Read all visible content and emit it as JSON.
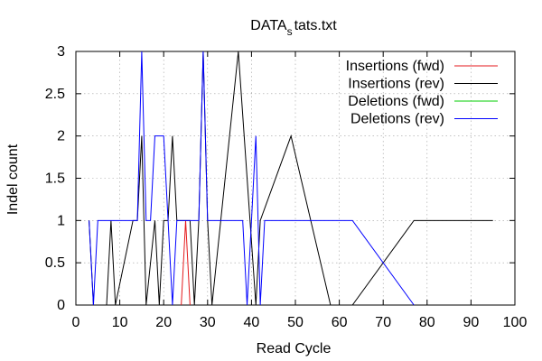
{
  "chart_data": {
    "type": "line",
    "title_main": "DATA",
    "title_sub": "s",
    "title_rest": "tats.txt",
    "xlabel": "Read Cycle",
    "ylabel": "Indel count",
    "xlim": [
      0,
      100
    ],
    "ylim": [
      0,
      3
    ],
    "x_ticks": [
      0,
      10,
      20,
      30,
      40,
      50,
      60,
      70,
      80,
      90,
      100
    ],
    "y_ticks": [
      0,
      0.5,
      1,
      1.5,
      2,
      2.5,
      3
    ],
    "x_tick_labels": [
      "0",
      "10",
      "20",
      "30",
      "40",
      "50",
      "60",
      "70",
      "80",
      "90",
      "100"
    ],
    "y_tick_labels": [
      "0",
      "0.5",
      "1",
      "1.5",
      "2",
      "2.5",
      "3"
    ],
    "grid": true,
    "legend_position": "top-right",
    "series": [
      {
        "name": "Insertions (fwd)",
        "color": "#e41a1c",
        "points": [
          [
            24,
            0
          ],
          [
            25,
            1
          ],
          [
            26,
            0
          ]
        ]
      },
      {
        "name": "Insertions (rev)",
        "color": "#000000",
        "points": [
          [
            3,
            1
          ],
          [
            4,
            0
          ],
          [
            5,
            0
          ],
          [
            7,
            0
          ],
          [
            8,
            1
          ],
          [
            9,
            0
          ],
          [
            13,
            1
          ],
          [
            14,
            1
          ],
          [
            15,
            2
          ],
          [
            16,
            0
          ],
          [
            18,
            1
          ],
          [
            19,
            0
          ],
          [
            20,
            1
          ],
          [
            21,
            1
          ],
          [
            22,
            2
          ],
          [
            23,
            1
          ],
          [
            26,
            1
          ],
          [
            27,
            0
          ],
          [
            28,
            1
          ],
          [
            29,
            3
          ],
          [
            30,
            1
          ],
          [
            31,
            0
          ],
          [
            37,
            3
          ],
          [
            41,
            0
          ],
          [
            42,
            1
          ],
          [
            49,
            2
          ],
          [
            58,
            0
          ],
          [
            63,
            0
          ],
          [
            77,
            1
          ],
          [
            95,
            1
          ]
        ]
      },
      {
        "name": "Deletions (fwd)",
        "color": "#00cc00",
        "points": []
      },
      {
        "name": "Deletions (rev)",
        "color": "#0000ff",
        "points": [
          [
            3,
            1
          ],
          [
            4,
            0
          ],
          [
            5,
            1
          ],
          [
            14,
            1
          ],
          [
            15,
            3
          ],
          [
            16,
            1
          ],
          [
            17,
            1
          ],
          [
            18,
            2
          ],
          [
            20,
            2
          ],
          [
            21,
            1
          ],
          [
            22,
            0
          ],
          [
            23,
            1
          ],
          [
            28,
            1
          ],
          [
            29,
            3
          ],
          [
            30,
            1
          ],
          [
            38,
            1
          ],
          [
            39,
            0
          ],
          [
            40,
            1
          ],
          [
            41,
            2
          ],
          [
            42,
            0
          ],
          [
            43,
            1
          ],
          [
            63,
            1
          ],
          [
            77,
            0
          ]
        ]
      }
    ]
  }
}
